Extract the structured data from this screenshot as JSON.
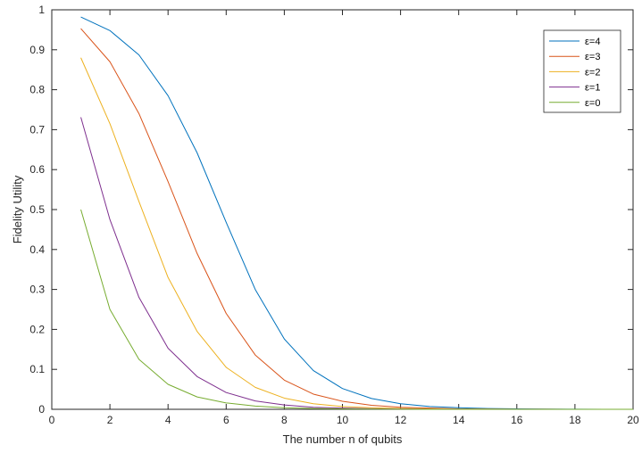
{
  "chart_data": {
    "type": "line",
    "title": "",
    "xlabel": "The number n of qubits",
    "ylabel": "Fidelity Utility",
    "xlim": [
      0,
      20
    ],
    "ylim": [
      0,
      1
    ],
    "xticks": [
      0,
      2,
      4,
      6,
      8,
      10,
      12,
      14,
      16,
      18,
      20
    ],
    "yticks": [
      0,
      0.1,
      0.2,
      0.3,
      0.4,
      0.5,
      0.6,
      0.7,
      0.8,
      0.9,
      1
    ],
    "xtick_labels": [
      "0",
      "2",
      "4",
      "6",
      "8",
      "10",
      "12",
      "14",
      "16",
      "18",
      "20"
    ],
    "ytick_labels": [
      "0",
      "0.1",
      "0.2",
      "0.3",
      "0.4",
      "0.5",
      "0.6",
      "0.7",
      "0.8",
      "0.9",
      "1"
    ],
    "grid": false,
    "legend_position": "top-right",
    "x": [
      1,
      2,
      3,
      4,
      5,
      6,
      7,
      8,
      9,
      10,
      11,
      12,
      13,
      14,
      15,
      16,
      17,
      18,
      19,
      20
    ],
    "series": [
      {
        "name": "ε=4",
        "color": "#0072BD",
        "values": [
          0.982,
          0.948,
          0.887,
          0.785,
          0.642,
          0.468,
          0.3,
          0.176,
          0.097,
          0.052,
          0.027,
          0.014,
          0.007,
          0.004,
          0.002,
          0.001,
          0.0005,
          0.0003,
          0.0001,
          0.0001
        ]
      },
      {
        "name": "ε=3",
        "color": "#D95319",
        "values": [
          0.953,
          0.87,
          0.74,
          0.57,
          0.39,
          0.24,
          0.136,
          0.073,
          0.038,
          0.02,
          0.01,
          0.005,
          0.003,
          0.001,
          0.0007,
          0.0003,
          0.0002,
          0.0001,
          0.0001,
          0.0
        ]
      },
      {
        "name": "ε=2",
        "color": "#EDB120",
        "values": [
          0.88,
          0.715,
          0.52,
          0.33,
          0.195,
          0.105,
          0.055,
          0.028,
          0.014,
          0.007,
          0.004,
          0.002,
          0.001,
          0.0005,
          0.0002,
          0.0001,
          0.0001,
          0.0,
          0.0,
          0.0
        ]
      },
      {
        "name": "ε=1",
        "color": "#7E2F8E",
        "values": [
          0.731,
          0.475,
          0.28,
          0.153,
          0.082,
          0.042,
          0.021,
          0.011,
          0.005,
          0.003,
          0.0013,
          0.0007,
          0.0003,
          0.0002,
          0.0001,
          0.0,
          0.0,
          0.0,
          0.0,
          0.0
        ]
      },
      {
        "name": "ε=0",
        "color": "#77AC30",
        "values": [
          0.5,
          0.25,
          0.125,
          0.0625,
          0.031,
          0.016,
          0.008,
          0.004,
          0.002,
          0.001,
          0.0005,
          0.0002,
          0.0001,
          0.0001,
          0.0,
          0.0,
          0.0,
          0.0,
          0.0,
          0.0
        ]
      }
    ]
  }
}
